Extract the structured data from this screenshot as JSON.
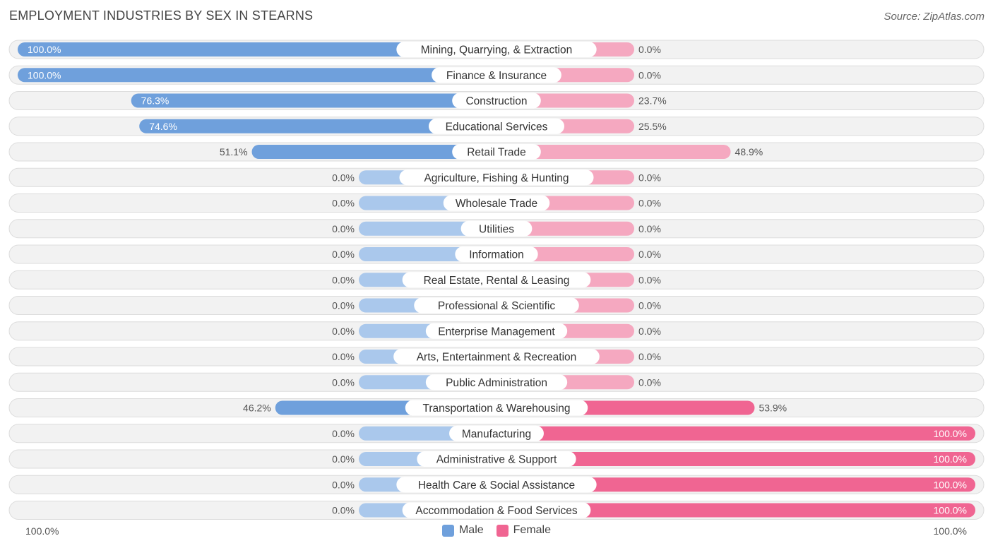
{
  "title": "EMPLOYMENT INDUSTRIES BY SEX IN STEARNS",
  "source": "Source: ZipAtlas.com",
  "colors": {
    "male": "#6fa0dc",
    "male_light": "#aac8ec",
    "female": "#f06592",
    "female_light": "#f5a8c0"
  },
  "legend": {
    "male": "Male",
    "female": "Female"
  },
  "axis": {
    "left_label": "100.0%",
    "right_label": "100.0%"
  },
  "chart_data": {
    "type": "bar",
    "orientation": "horizontal-diverging",
    "categories": [
      "Mining, Quarrying, & Extraction",
      "Finance & Insurance",
      "Construction",
      "Educational Services",
      "Retail Trade",
      "Agriculture, Fishing & Hunting",
      "Wholesale Trade",
      "Utilities",
      "Information",
      "Real Estate, Rental & Leasing",
      "Professional & Scientific",
      "Enterprise Management",
      "Arts, Entertainment & Recreation",
      "Public Administration",
      "Transportation & Warehousing",
      "Manufacturing",
      "Administrative & Support",
      "Health Care & Social Assistance",
      "Accommodation & Food Services"
    ],
    "series": [
      {
        "name": "Male",
        "values": [
          100.0,
          100.0,
          76.3,
          74.6,
          51.1,
          0.0,
          0.0,
          0.0,
          0.0,
          0.0,
          0.0,
          0.0,
          0.0,
          0.0,
          46.2,
          0.0,
          0.0,
          0.0,
          0.0
        ],
        "labels": [
          "100.0%",
          "100.0%",
          "76.3%",
          "74.6%",
          "51.1%",
          "0.0%",
          "0.0%",
          "0.0%",
          "0.0%",
          "0.0%",
          "0.0%",
          "0.0%",
          "0.0%",
          "0.0%",
          "46.2%",
          "0.0%",
          "0.0%",
          "0.0%",
          "0.0%"
        ]
      },
      {
        "name": "Female",
        "values": [
          0.0,
          0.0,
          23.7,
          25.5,
          48.9,
          0.0,
          0.0,
          0.0,
          0.0,
          0.0,
          0.0,
          0.0,
          0.0,
          0.0,
          53.9,
          100.0,
          100.0,
          100.0,
          100.0
        ],
        "labels": [
          "0.0%",
          "0.0%",
          "23.7%",
          "25.5%",
          "48.9%",
          "0.0%",
          "0.0%",
          "0.0%",
          "0.0%",
          "0.0%",
          "0.0%",
          "0.0%",
          "0.0%",
          "0.0%",
          "53.9%",
          "100.0%",
          "100.0%",
          "100.0%",
          "100.0%"
        ]
      }
    ],
    "xlim": [
      -100,
      100
    ],
    "unit": "%",
    "legend_position": "bottom-center"
  }
}
